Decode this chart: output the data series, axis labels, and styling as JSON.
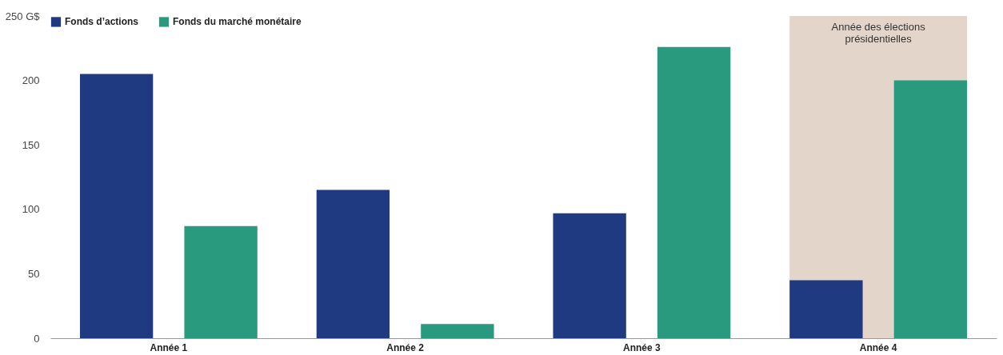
{
  "chart_data": {
    "type": "bar",
    "categories": [
      "Année 1",
      "Année 2",
      "Année 3",
      "Année 4"
    ],
    "series": [
      {
        "name": "Fonds d’actions",
        "color": "#1f3a80",
        "values": [
          205,
          115,
          97,
          45
        ]
      },
      {
        "name": "Fonds du marché monétaire",
        "color": "#2a9a7e",
        "values": [
          87,
          11,
          226,
          200
        ]
      }
    ],
    "ylim": [
      0,
      250
    ],
    "yticks": [
      0,
      50,
      100,
      150,
      200,
      {
        "value": 250,
        "label": "250 G$"
      }
    ],
    "bands": [
      {
        "axis": "x",
        "from": "Année 4",
        "to": "Année 4",
        "label": "Année des élections présidentielles",
        "color": "#e3d5ca"
      }
    ],
    "legend": "top left"
  }
}
